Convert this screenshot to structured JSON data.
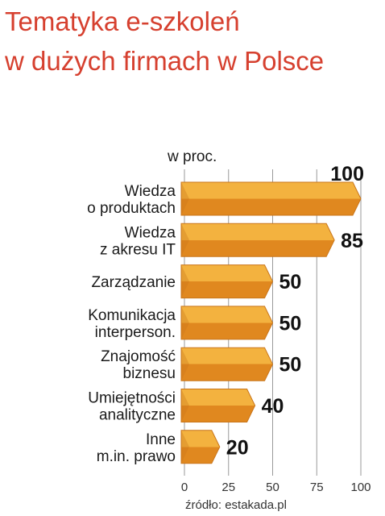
{
  "title": {
    "line1": "Tematyka e-szkoleń",
    "line2": "w dużych firmach w Polsce"
  },
  "unit_label": "w proc.",
  "source": "źródło: estakada.pl",
  "colors": {
    "title": "#d6402f",
    "bar_top": "#f3b23f",
    "bar_bottom": "#e0881f",
    "bar_edge": "#c9751a",
    "grid": "#9a9a9a"
  },
  "chart_data": {
    "type": "bar",
    "orientation": "horizontal",
    "categories": [
      [
        "Wiedza",
        "o produktach"
      ],
      [
        "Wiedza",
        "z akresu IT"
      ],
      [
        "Zarządzanie"
      ],
      [
        "Komunikacja",
        "interperson."
      ],
      [
        "Znajomość",
        "biznesu"
      ],
      [
        "Umiejętności",
        "analityczne"
      ],
      [
        "Inne",
        "m.in. prawo"
      ]
    ],
    "values": [
      100,
      85,
      50,
      50,
      50,
      40,
      20
    ],
    "xlim": [
      0,
      100
    ],
    "xticks": [
      0,
      25,
      50,
      75,
      100
    ],
    "grid": true
  }
}
